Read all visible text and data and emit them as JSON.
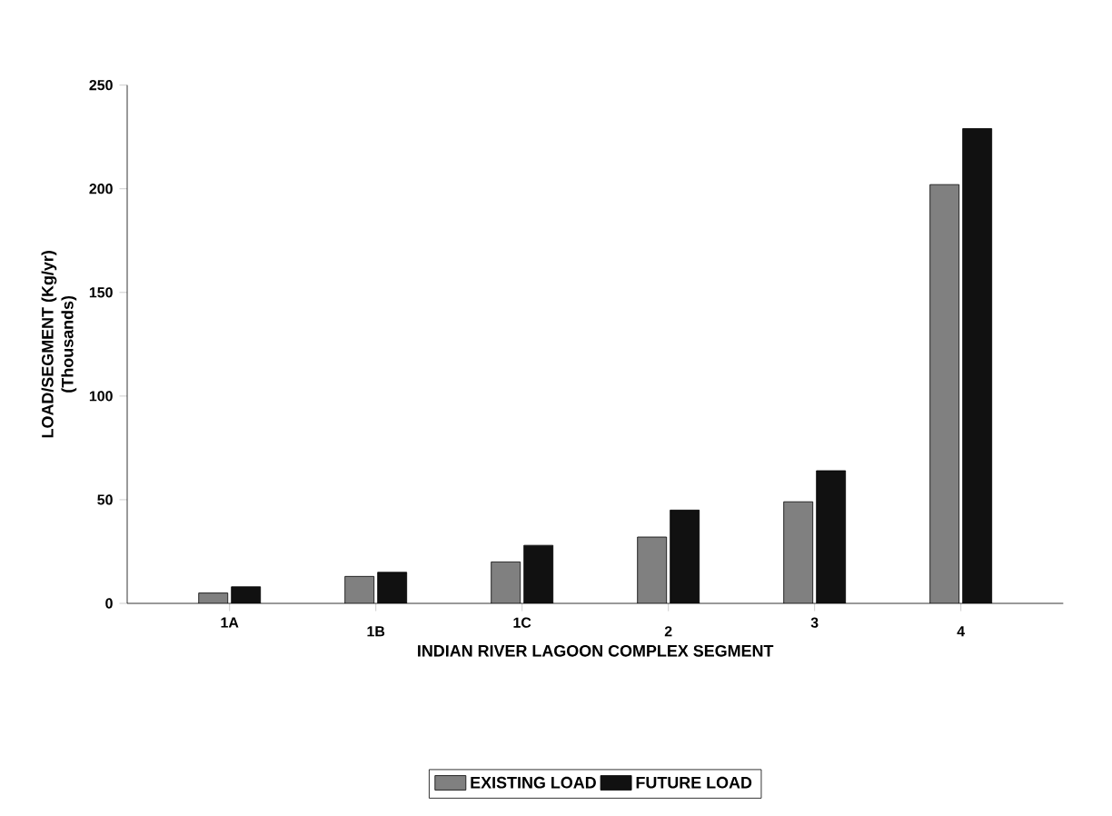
{
  "chart_data": {
    "type": "bar",
    "xlabel": "INDIAN RIVER LAGOON COMPLEX SEGMENT",
    "ylabel": "LOAD/SEGMENT (Kg/yr)\n(Thousands)",
    "categories": [
      "1A",
      "1B",
      "1C",
      "2",
      "3",
      "4"
    ],
    "series": [
      {
        "name": "EXISTING LOAD",
        "color": "#808080",
        "values": [
          5,
          13,
          20,
          32,
          49,
          202
        ]
      },
      {
        "name": "FUTURE LOAD",
        "color": "#111111",
        "values": [
          8,
          15,
          28,
          45,
          64,
          229
        ]
      }
    ],
    "ylim": [
      0,
      250
    ],
    "yticks": [
      0,
      50,
      100,
      150,
      200,
      250
    ],
    "legend": "bottom"
  }
}
